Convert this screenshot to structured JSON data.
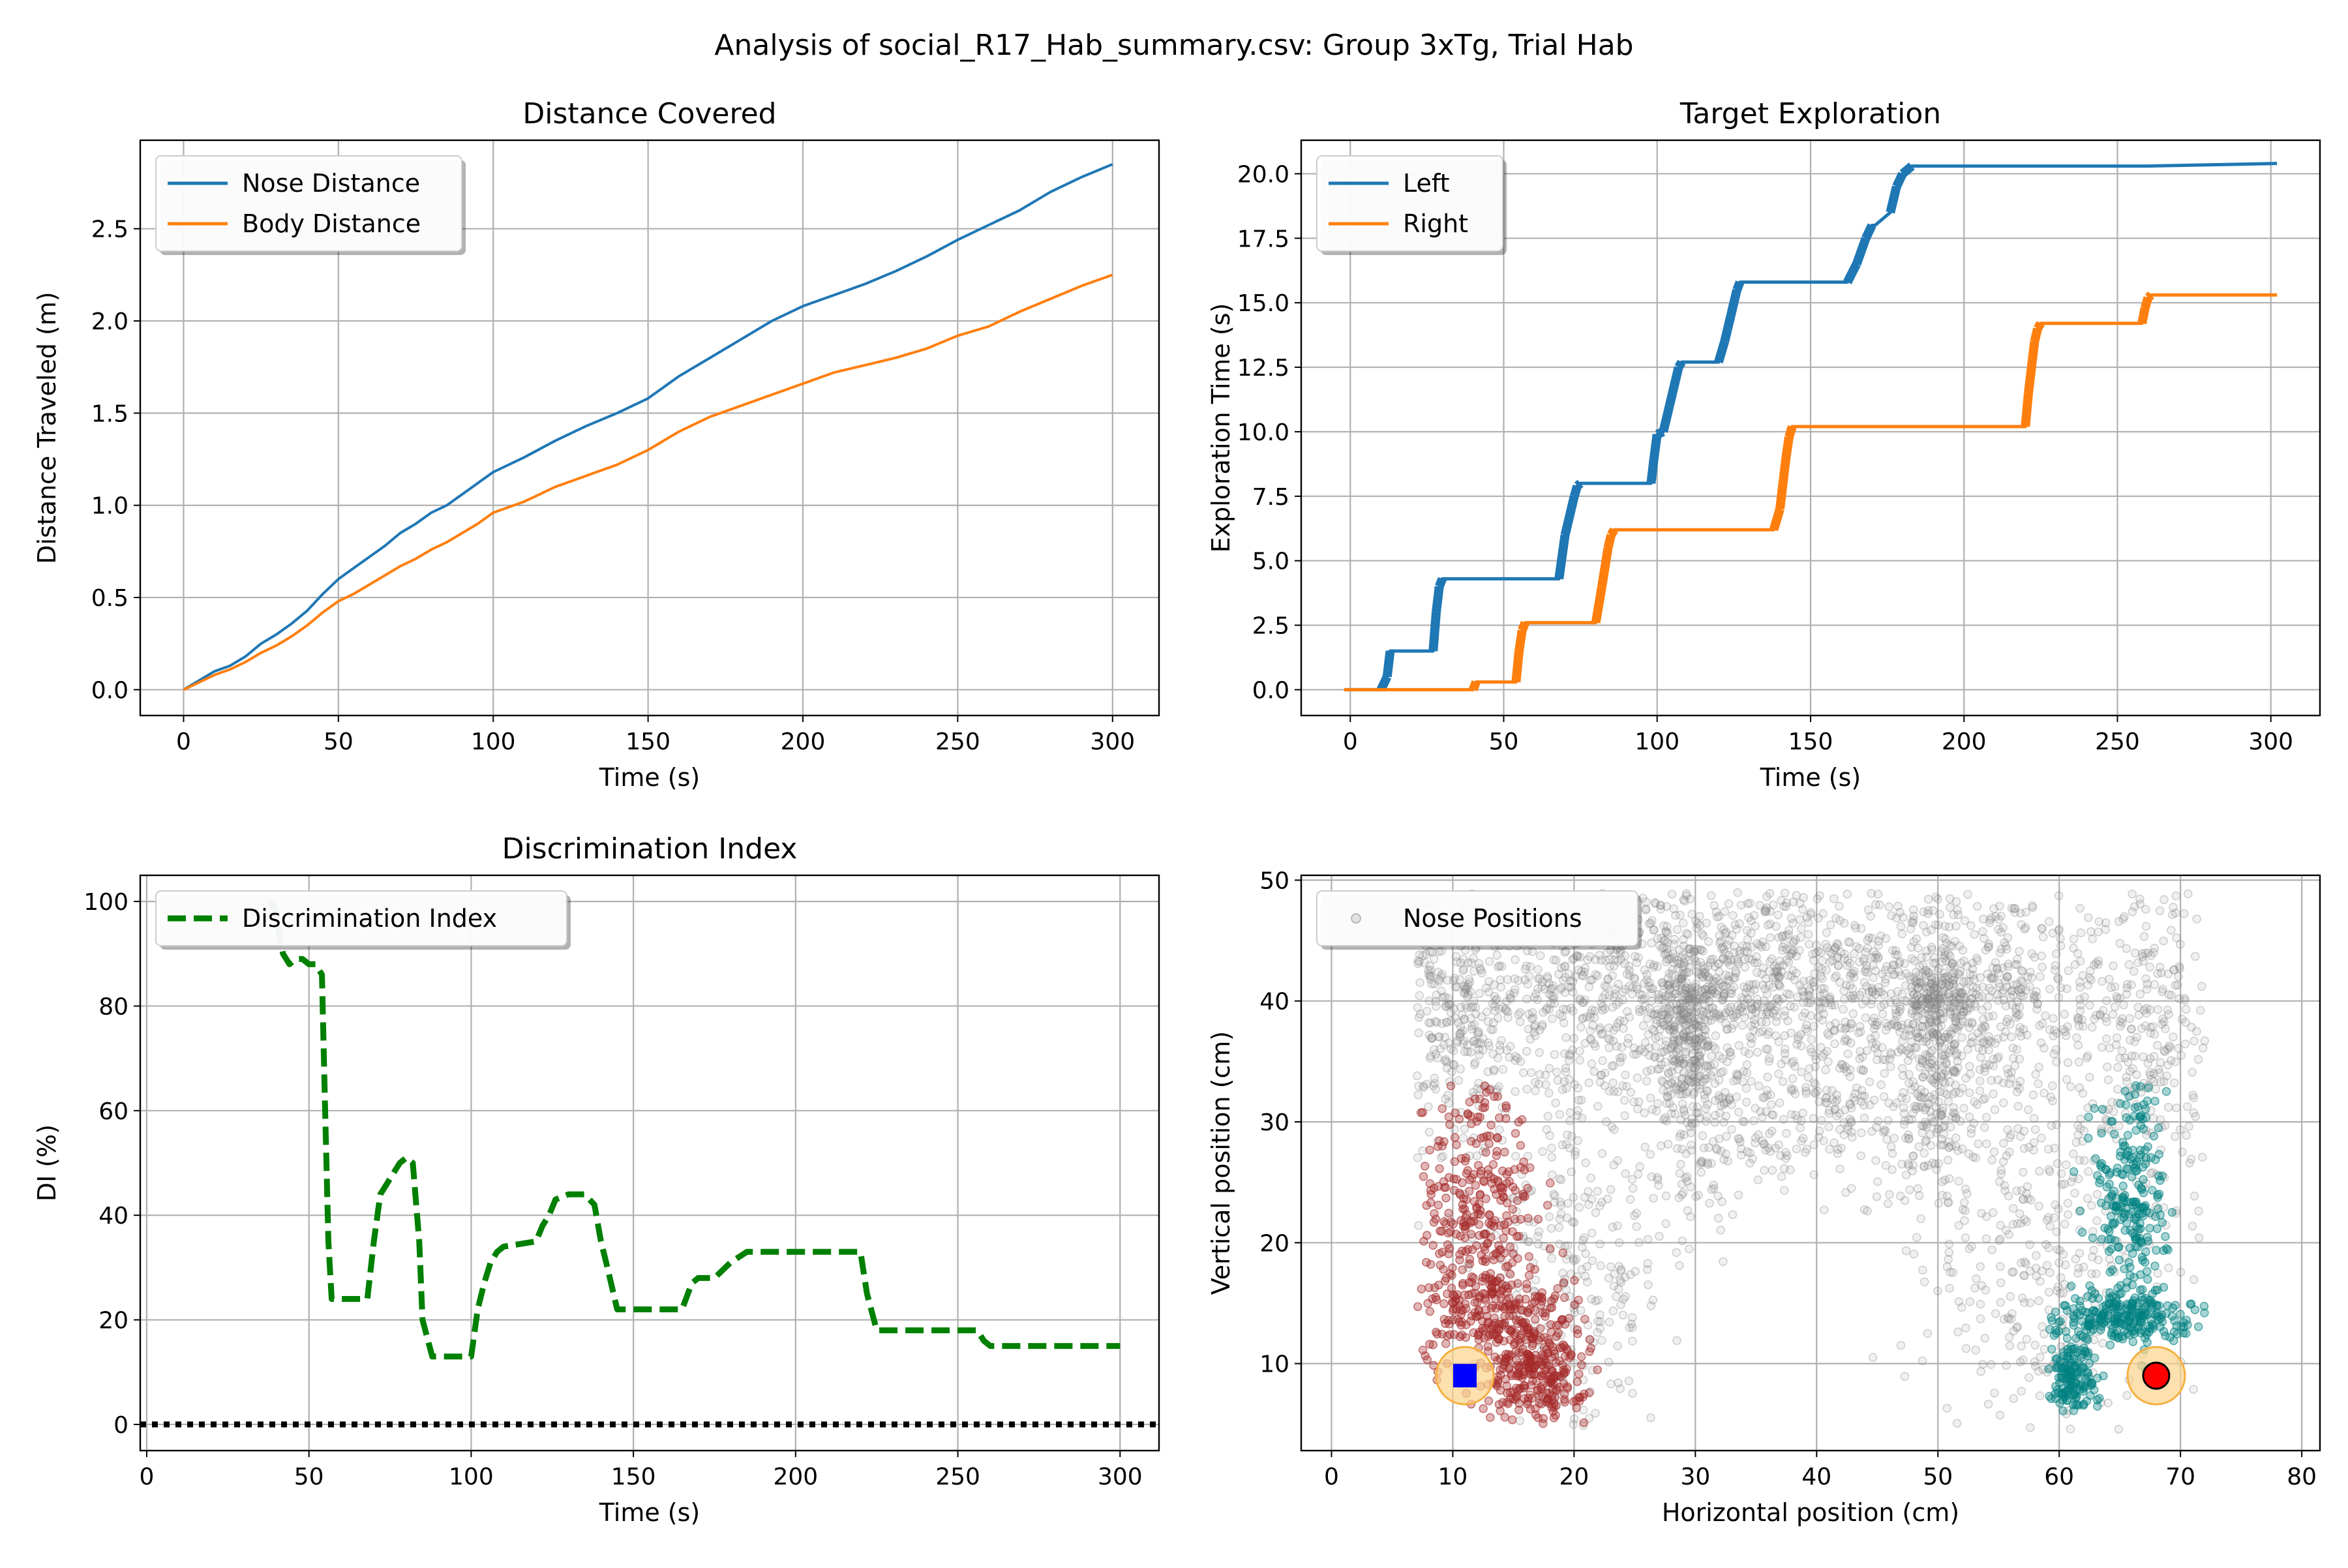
{
  "figure": {
    "suptitle": "Analysis of social_R17_Hab_summary.csv: Group 3xTg, Trial Hab"
  },
  "colors": {
    "blue": "#1f77b4",
    "orange": "#ff7f0e",
    "green": "#008000",
    "grid": "#b0b0b0",
    "gray_points": "#808080",
    "left_zone_points": "#a52a2a",
    "right_zone_points": "#008080",
    "target_halo": "#fbd38a",
    "left_target": "#0000ff",
    "right_target": "#ff0000"
  },
  "chart_data": [
    {
      "id": "distance",
      "type": "line",
      "title": "Distance Covered",
      "xlabel": "Time (s)",
      "ylabel": "Distance Traveled (m)",
      "xlim": [
        -14,
        315
      ],
      "ylim": [
        -0.14,
        2.98
      ],
      "xticks": [
        0,
        50,
        100,
        150,
        200,
        250,
        300
      ],
      "yticks": [
        0.0,
        0.5,
        1.0,
        1.5,
        2.0,
        2.5
      ],
      "ytick_labels": [
        "0.0",
        "0.5",
        "1.0",
        "1.5",
        "2.0",
        "2.5"
      ],
      "grid": true,
      "legend": "upper left",
      "series": [
        {
          "name": "Nose Distance",
          "color": "#1f77b4",
          "x": [
            0,
            10,
            15,
            20,
            25,
            30,
            35,
            40,
            45,
            50,
            55,
            60,
            65,
            70,
            75,
            80,
            85,
            90,
            95,
            100,
            110,
            120,
            130,
            140,
            150,
            160,
            170,
            180,
            190,
            200,
            210,
            220,
            230,
            240,
            250,
            260,
            270,
            280,
            290,
            300
          ],
          "y": [
            0.0,
            0.1,
            0.13,
            0.18,
            0.25,
            0.3,
            0.36,
            0.43,
            0.52,
            0.6,
            0.66,
            0.72,
            0.78,
            0.85,
            0.9,
            0.96,
            1.0,
            1.06,
            1.12,
            1.18,
            1.26,
            1.35,
            1.43,
            1.5,
            1.58,
            1.7,
            1.8,
            1.9,
            2.0,
            2.08,
            2.14,
            2.2,
            2.27,
            2.35,
            2.44,
            2.52,
            2.6,
            2.7,
            2.78,
            2.85
          ]
        },
        {
          "name": "Body Distance",
          "color": "#ff7f0e",
          "x": [
            0,
            10,
            15,
            20,
            25,
            30,
            35,
            40,
            45,
            50,
            55,
            60,
            65,
            70,
            75,
            80,
            85,
            90,
            95,
            100,
            110,
            120,
            130,
            140,
            150,
            160,
            170,
            180,
            190,
            200,
            210,
            220,
            230,
            240,
            250,
            260,
            270,
            280,
            290,
            300
          ],
          "y": [
            0.0,
            0.08,
            0.11,
            0.15,
            0.2,
            0.24,
            0.29,
            0.35,
            0.42,
            0.48,
            0.52,
            0.57,
            0.62,
            0.67,
            0.71,
            0.76,
            0.8,
            0.85,
            0.9,
            0.96,
            1.02,
            1.1,
            1.16,
            1.22,
            1.3,
            1.4,
            1.48,
            1.54,
            1.6,
            1.66,
            1.72,
            1.76,
            1.8,
            1.85,
            1.92,
            1.97,
            2.05,
            2.12,
            2.19,
            2.25
          ]
        }
      ]
    },
    {
      "id": "exploration",
      "type": "line",
      "title": "Target Exploration",
      "xlabel": "Time (s)",
      "ylabel": "Exploration Time (s)",
      "xlim": [
        -16,
        316
      ],
      "ylim": [
        -1.0,
        21.3
      ],
      "xticks": [
        0,
        50,
        100,
        150,
        200,
        250,
        300
      ],
      "yticks": [
        0.0,
        2.5,
        5.0,
        7.5,
        10.0,
        12.5,
        15.0,
        17.5,
        20.0
      ],
      "ytick_labels": [
        "0.0",
        "2.5",
        "5.0",
        "7.5",
        "10.0",
        "12.5",
        "15.0",
        "17.5",
        "20.0"
      ],
      "grid": true,
      "legend": "upper left",
      "series": [
        {
          "name": "Left",
          "color": "#1f77b4",
          "x": [
            -2,
            10,
            12,
            13,
            14,
            27,
            28,
            29,
            30,
            68,
            70,
            72,
            73,
            74,
            75,
            98,
            99,
            100,
            102,
            104,
            105,
            106,
            107,
            108,
            110,
            111,
            120,
            122,
            123,
            124,
            125,
            126,
            127,
            128,
            162,
            165,
            168,
            170,
            171,
            176,
            178,
            180,
            182,
            183,
            260,
            302
          ],
          "x_note": "",
          "y": [
            0.0,
            0.0,
            0.5,
            1.5,
            1.5,
            1.5,
            3.0,
            4.0,
            4.3,
            4.3,
            6.0,
            7.0,
            7.5,
            7.9,
            8.0,
            8.0,
            9.0,
            9.9,
            10.0,
            11.0,
            11.5,
            12.0,
            12.5,
            12.7,
            12.7,
            12.7,
            12.7,
            13.5,
            14.0,
            14.5,
            15.0,
            15.5,
            15.8,
            15.8,
            15.8,
            16.5,
            17.5,
            18.0,
            18.0,
            18.5,
            19.5,
            20.0,
            20.2,
            20.3,
            20.3,
            20.4
          ]
        },
        {
          "name": "Right",
          "color": "#ff7f0e",
          "x": [
            -2,
            40,
            41,
            54,
            55,
            56,
            57,
            58,
            80,
            82,
            84,
            85,
            86,
            138,
            140,
            141,
            142,
            143,
            144,
            220,
            221,
            222,
            223,
            224,
            225,
            258,
            259,
            260,
            261,
            302
          ],
          "y": [
            0.0,
            0.0,
            0.3,
            0.3,
            1.5,
            2.3,
            2.6,
            2.6,
            2.6,
            4.0,
            5.5,
            6.0,
            6.2,
            6.2,
            7.0,
            8.0,
            9.0,
            9.8,
            10.2,
            10.2,
            11.5,
            12.5,
            13.5,
            14.0,
            14.2,
            14.2,
            14.8,
            15.2,
            15.3,
            15.3
          ]
        }
      ]
    },
    {
      "id": "di",
      "type": "line",
      "title": "Discrimination Index",
      "xlabel": "Time (s)",
      "ylabel": "DI (%)",
      "xlim": [
        -2,
        312
      ],
      "ylim": [
        -5,
        105
      ],
      "xticks": [
        0,
        50,
        100,
        150,
        200,
        250,
        300
      ],
      "yticks": [
        0,
        20,
        40,
        60,
        80,
        100
      ],
      "ytick_labels": [
        "0",
        "20",
        "40",
        "60",
        "80",
        "100"
      ],
      "grid": true,
      "legend": "upper left",
      "series": [
        {
          "name": "Discrimination Index",
          "color": "#008000",
          "style": "dashed",
          "x": [
            38,
            40,
            41,
            42,
            44,
            46,
            48,
            50,
            52,
            54,
            55,
            56,
            57,
            60,
            65,
            68,
            70,
            72,
            74,
            76,
            78,
            80,
            82,
            84,
            85,
            88,
            90,
            95,
            100,
            102,
            104,
            106,
            108,
            110,
            120,
            122,
            124,
            126,
            130,
            135,
            138,
            140,
            142,
            145,
            150,
            155,
            160,
            165,
            168,
            170,
            175,
            180,
            185,
            190,
            195,
            200,
            210,
            215,
            220,
            222,
            225,
            230,
            240,
            250,
            256,
            258,
            260,
            270,
            280,
            290,
            300
          ],
          "y": [
            100,
            98,
            93,
            90,
            88,
            89,
            89,
            88,
            88,
            86,
            60,
            35,
            24,
            24,
            24,
            24,
            35,
            44,
            46,
            48,
            50,
            51,
            50,
            35,
            20,
            13,
            13,
            13,
            13,
            22,
            27,
            31,
            33,
            34,
            35,
            38,
            40,
            43,
            44,
            44,
            42,
            35,
            30,
            22,
            22,
            22,
            22,
            22,
            27,
            28,
            28,
            31,
            33,
            33,
            33,
            33,
            33,
            33,
            33,
            25,
            18,
            18,
            18,
            18,
            18,
            16,
            15,
            15,
            15,
            15,
            15
          ]
        },
        {
          "name": "",
          "color": "#000000",
          "style": "dotted",
          "x": [
            -2,
            312
          ],
          "y": [
            0,
            0
          ]
        }
      ]
    },
    {
      "id": "positions",
      "type": "scatter",
      "title": "",
      "xlabel": "Horizontal position (cm)",
      "ylabel": "Vertical position (cm)",
      "xlim": [
        -2.5,
        81.5
      ],
      "ylim": [
        2.8,
        50.4
      ],
      "xticks": [
        0,
        10,
        20,
        30,
        40,
        50,
        60,
        70,
        80
      ],
      "yticks": [
        10,
        20,
        30,
        40,
        50
      ],
      "ytick_labels": [
        "10",
        "20",
        "30",
        "40",
        "50"
      ],
      "grid": true,
      "legend": "upper left",
      "series": [
        {
          "name": "Nose Positions",
          "color": "#808080"
        }
      ],
      "regions": {
        "gray_clusters": [
          {
            "cx": 20,
            "cy": 41,
            "sx": 12,
            "sy": 5,
            "n": 900
          },
          {
            "cx": 50,
            "cy": 41,
            "sx": 10,
            "sy": 5,
            "n": 800
          },
          {
            "cx": 35,
            "cy": 42,
            "sx": 6,
            "sy": 4,
            "n": 300
          },
          {
            "cx": 30,
            "cy": 34,
            "sx": 2,
            "sy": 6,
            "n": 250
          },
          {
            "cx": 50,
            "cy": 33,
            "sx": 2,
            "sy": 6,
            "n": 250
          },
          {
            "cx": 40,
            "cy": 30,
            "sx": 8,
            "sy": 3,
            "n": 200
          },
          {
            "cx": 20,
            "cy": 18,
            "sx": 4,
            "sy": 8,
            "n": 300
          },
          {
            "cx": 58,
            "cy": 18,
            "sx": 4,
            "sy": 8,
            "n": 300
          },
          {
            "cx": 68,
            "cy": 36,
            "sx": 3,
            "sy": 8,
            "n": 250
          },
          {
            "cx": 10,
            "cy": 38,
            "sx": 2,
            "sy": 6,
            "n": 150
          },
          {
            "cx": 29,
            "cy": 38,
            "sx": 1,
            "sy": 3,
            "n": 150
          },
          {
            "cx": 50,
            "cy": 40,
            "sx": 1.5,
            "sy": 1.5,
            "n": 150
          }
        ],
        "gray_bounds": {
          "xmin": 7,
          "xmax": 72,
          "ymin": 4.5,
          "ymax": 49
        },
        "left_zone": [
          {
            "cx": 12,
            "cy": 22,
            "sx": 2.5,
            "sy": 6,
            "n": 350
          },
          {
            "cx": 17,
            "cy": 9,
            "sx": 2,
            "sy": 2,
            "n": 250
          },
          {
            "cx": 14,
            "cy": 14,
            "sx": 3,
            "sy": 2,
            "n": 200
          }
        ],
        "left_zone_bounds": {
          "xmin": 7,
          "xmax": 27,
          "ymin": 5,
          "ymax": 33
        },
        "right_zone": [
          {
            "cx": 66,
            "cy": 24,
            "sx": 1.5,
            "sy": 6,
            "n": 250
          },
          {
            "cx": 65,
            "cy": 14,
            "sx": 3,
            "sy": 1,
            "n": 250
          },
          {
            "cx": 61,
            "cy": 9,
            "sx": 1,
            "sy": 1.5,
            "n": 150
          }
        ],
        "right_zone_bounds": {
          "xmin": 59,
          "xmax": 72,
          "ymin": 6,
          "ymax": 33
        }
      },
      "targets": [
        {
          "name": "left-target",
          "x": 11,
          "y": 9,
          "marker": "square",
          "color": "#0000ff"
        },
        {
          "name": "right-target",
          "x": 68,
          "y": 9,
          "marker": "circle",
          "color": "#ff0000"
        }
      ]
    }
  ]
}
